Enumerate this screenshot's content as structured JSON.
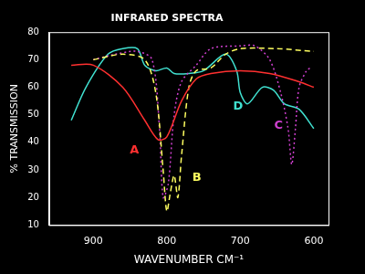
{
  "chart_data": {
    "type": "line",
    "title": "INFRARED SPECTRA",
    "x_label": "WAVENUMBER CM⁻¹",
    "y_label": "% TRANSMISSION",
    "xlim": [
      960,
      580
    ],
    "xticks": [
      900,
      800,
      700,
      600
    ],
    "ylim": [
      10,
      80
    ],
    "yticks": [
      10,
      20,
      30,
      40,
      50,
      60,
      70,
      80
    ],
    "grid": false,
    "series": [
      {
        "name": "A",
        "color": "#ff3030",
        "line_style": "solid",
        "label_at": [
          844,
          37
        ],
        "x": [
          930,
          900,
          860,
          830,
          812,
          800,
          780,
          760,
          740,
          700,
          660,
          620,
          600
        ],
        "values": [
          68,
          68,
          60,
          48,
          41,
          42,
          55,
          63,
          65,
          66,
          65,
          62,
          60
        ]
      },
      {
        "name": "B",
        "color": "#ffff60",
        "line_style": "dashed",
        "label_at": [
          759,
          27
        ],
        "x": [
          900,
          860,
          830,
          815,
          805,
          800,
          795,
          790,
          785,
          780,
          770,
          760,
          740,
          720,
          700,
          650,
          600
        ],
        "values": [
          70,
          72,
          70,
          58,
          30,
          15,
          22,
          28,
          20,
          35,
          60,
          66,
          67,
          72,
          74,
          74,
          73
        ]
      },
      {
        "name": "C",
        "color": "#d040d0",
        "line_style": "dotted",
        "label_at": [
          648,
          46
        ],
        "x": [
          900,
          870,
          840,
          820,
          810,
          805,
          798,
          790,
          780,
          760,
          740,
          700,
          680,
          660,
          645,
          635,
          630,
          625,
          620,
          610,
          605
        ],
        "values": [
          70,
          72,
          73,
          70,
          45,
          20,
          25,
          50,
          62,
          68,
          74,
          75,
          75,
          70,
          58,
          45,
          32,
          45,
          60,
          66,
          67
        ]
      },
      {
        "name": "D",
        "color": "#40e0d0",
        "line_style": "solid",
        "label_at": [
          703,
          53
        ],
        "x": [
          930,
          910,
          880,
          860,
          840,
          830,
          815,
          800,
          790,
          770,
          750,
          720,
          705,
          700,
          690,
          670,
          655,
          640,
          620,
          600
        ],
        "values": [
          48,
          60,
          72,
          74,
          74,
          68,
          66,
          67,
          65,
          65,
          66,
          72,
          66,
          58,
          54,
          60,
          59,
          54,
          52,
          45
        ]
      }
    ]
  }
}
